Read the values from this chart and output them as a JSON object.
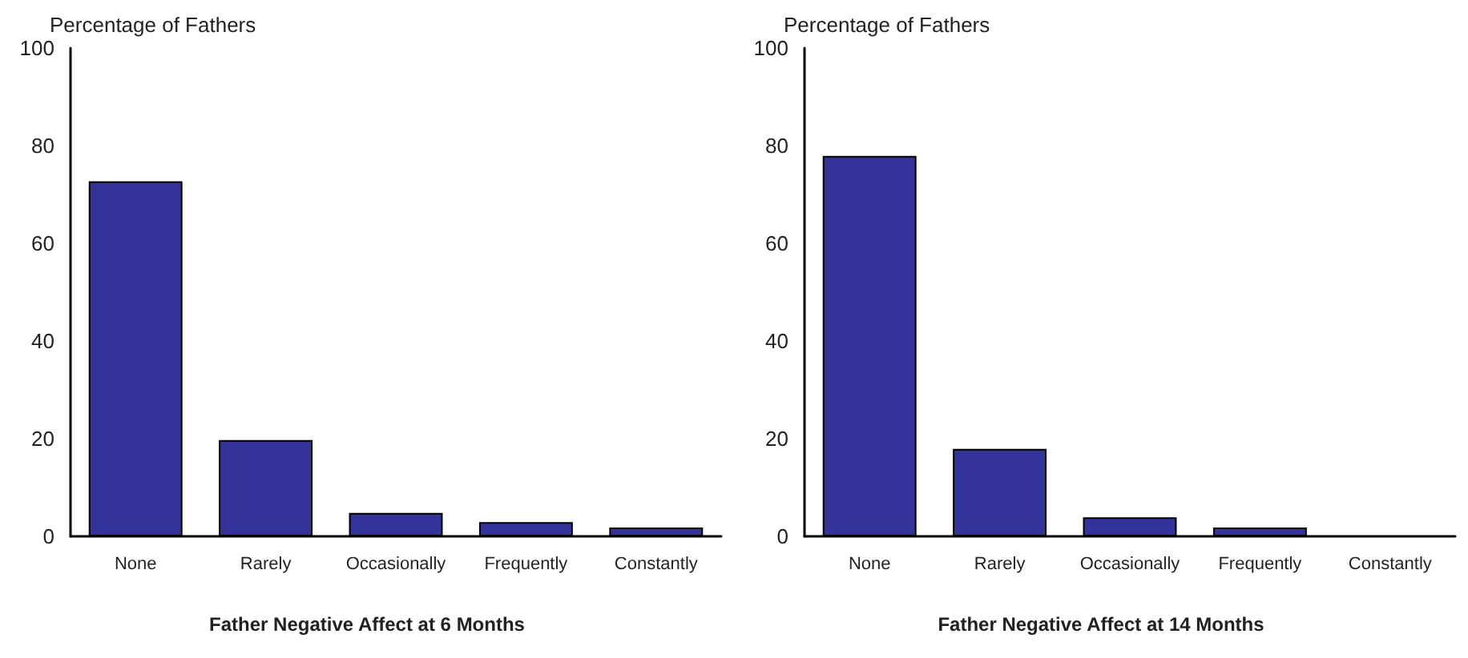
{
  "chart_data": [
    {
      "type": "bar",
      "ylabel": "Percentage of Fathers",
      "xlabel": "Father Negative Affect at 6 Months",
      "categories": [
        "None",
        "Rarely",
        "Occasionally",
        "Frequently",
        "Constantly"
      ],
      "values": [
        72.7,
        19.7,
        4.8,
        2.9,
        1.8
      ],
      "color": "#333399",
      "ylim": [
        0,
        100
      ],
      "yticks": [
        0,
        20,
        40,
        60,
        80,
        100
      ],
      "grid": false
    },
    {
      "type": "bar",
      "ylabel": "Percentage of Fathers",
      "xlabel": "Father Negative Affect at 14 Months",
      "categories": [
        "None",
        "Rarely",
        "Occasionally",
        "Frequently",
        "Constantly"
      ],
      "values": [
        77.9,
        17.9,
        3.9,
        1.8,
        0
      ],
      "color": "#333399",
      "ylim": [
        0,
        100
      ],
      "yticks": [
        0,
        20,
        40,
        60,
        80,
        100
      ],
      "grid": false
    }
  ]
}
